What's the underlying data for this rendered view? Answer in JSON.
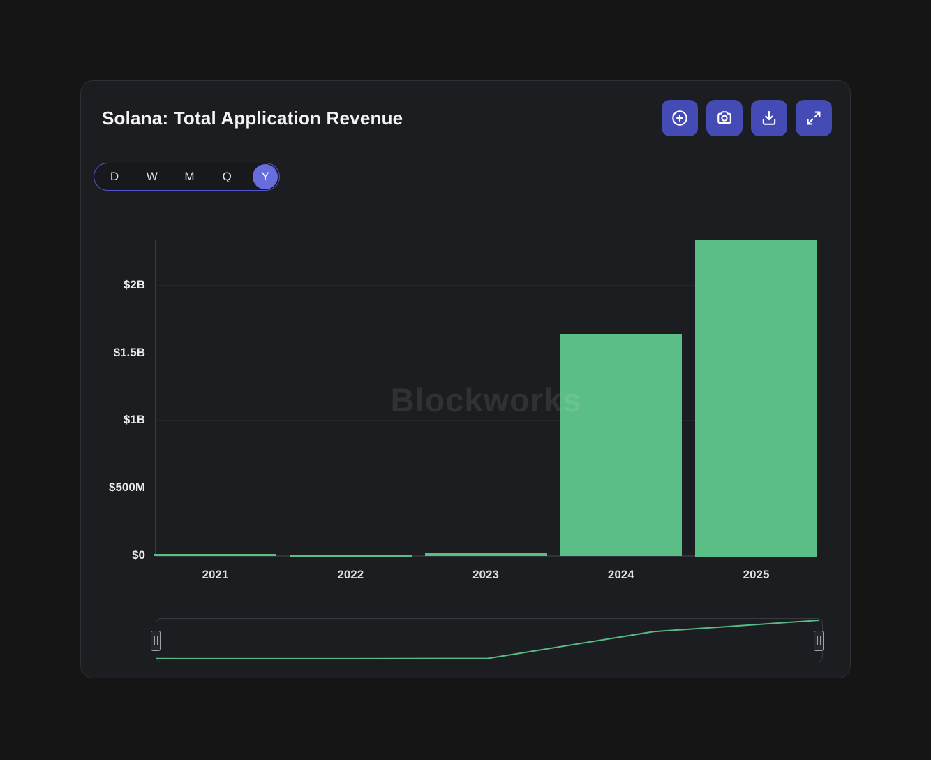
{
  "header": {
    "title": "Solana: Total Application Revenue",
    "toolbar": {
      "zoom_in_icon": "circle-plus-icon",
      "screenshot_icon": "camera-icon",
      "download_icon": "download-icon",
      "fullscreen_icon": "expand-icon"
    }
  },
  "range_selector": {
    "options": [
      "D",
      "W",
      "M",
      "Q",
      "Y"
    ],
    "selected": "Y"
  },
  "watermark": "Blockworks",
  "chart_data": {
    "type": "bar",
    "title": "Solana: Total Application Revenue",
    "series_name": "Total Application Revenue",
    "categories": [
      "2021",
      "2022",
      "2023",
      "2024",
      "2025"
    ],
    "values_millions": [
      10,
      5,
      20,
      1640,
      2330
    ],
    "xlabel": "",
    "ylabel": "",
    "y_ticks": [
      {
        "value": 0,
        "label": "$0"
      },
      {
        "value": 500,
        "label": "$500M"
      },
      {
        "value": 1000,
        "label": "$1B"
      },
      {
        "value": 1500,
        "label": "$1.5B"
      },
      {
        "value": 2000,
        "label": "$2B"
      }
    ],
    "ylim_millions": [
      0,
      2330
    ],
    "grid": true,
    "legend": false,
    "navigator": true,
    "bar_color": "#5cbe87"
  },
  "colors": {
    "page_bg": "#151515",
    "card_bg": "#1c1d21",
    "card_border": "#2e2f34",
    "accent_indigo": "#454bb5",
    "selected_indigo": "#686dde",
    "range_border_indigo": "#5156cc",
    "bar_green": "#5cbe87",
    "navigator_line": "#58bb83",
    "gridline": "#26272b",
    "text_primary": "#f4f4f6",
    "axis_label": "#ebebed"
  }
}
